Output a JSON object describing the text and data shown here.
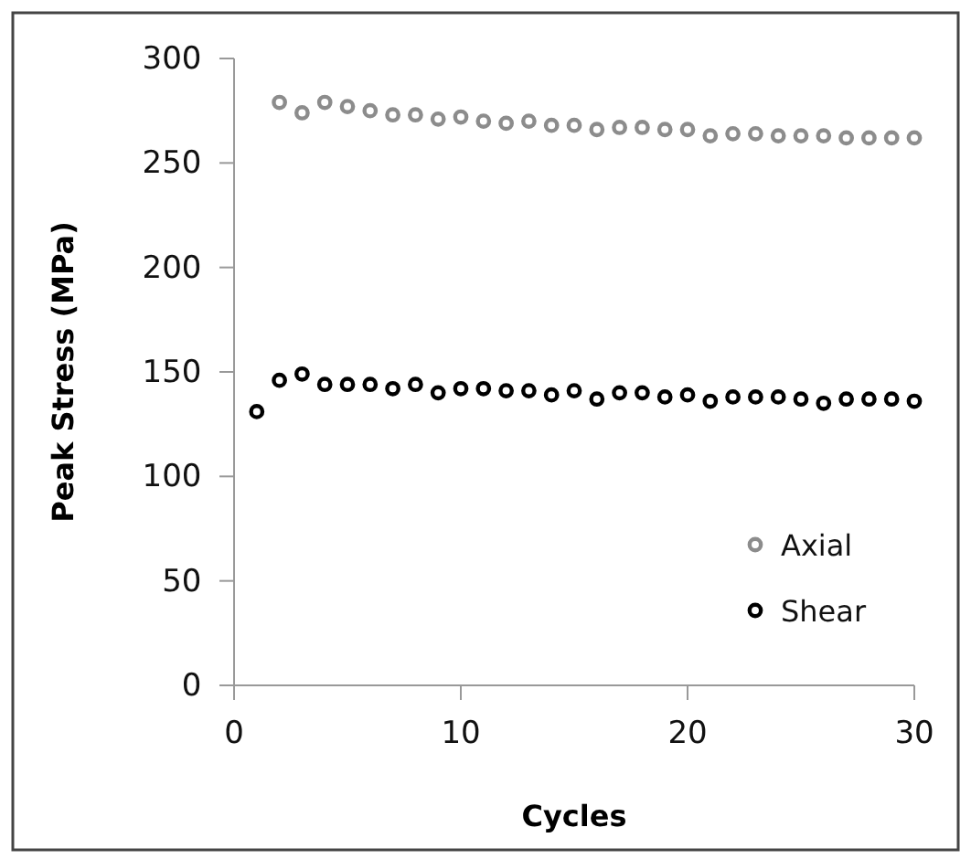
{
  "chart_data": {
    "type": "scatter",
    "xlabel": "Cycles",
    "ylabel": "Peak  Stress (MPa)",
    "xlim": [
      0,
      30
    ],
    "xticks": [
      0,
      10,
      20,
      30
    ],
    "ylim": [
      0,
      300
    ],
    "yticks": [
      0,
      50,
      100,
      150,
      200,
      250,
      300
    ],
    "grid": false,
    "legend": "bottom right",
    "marker": "circle",
    "series": [
      {
        "name": "Axial",
        "color": "#8c8c8c",
        "x": [
          2,
          3,
          4,
          5,
          6,
          7,
          8,
          9,
          10,
          11,
          12,
          13,
          14,
          15,
          16,
          17,
          18,
          19,
          20,
          21,
          22,
          23,
          24,
          25,
          26,
          27,
          28,
          29,
          30
        ],
        "values": [
          279,
          274,
          279,
          277,
          275,
          273,
          273,
          271,
          272,
          270,
          269,
          270,
          268,
          268,
          266,
          267,
          267,
          266,
          266,
          263,
          264,
          264,
          263,
          263,
          263,
          262,
          262,
          262,
          262
        ]
      },
      {
        "name": "Shear",
        "color": "#000000",
        "x": [
          1,
          2,
          3,
          4,
          5,
          6,
          7,
          8,
          9,
          10,
          11,
          12,
          13,
          14,
          15,
          16,
          17,
          18,
          19,
          20,
          21,
          22,
          23,
          24,
          25,
          26,
          27,
          28,
          29,
          30
        ],
        "values": [
          131,
          146,
          149,
          144,
          144,
          144,
          142,
          144,
          140,
          142,
          142,
          141,
          141,
          139,
          141,
          137,
          140,
          140,
          138,
          139,
          136,
          138,
          138,
          138,
          137,
          135,
          137,
          137,
          137,
          136
        ]
      }
    ]
  }
}
